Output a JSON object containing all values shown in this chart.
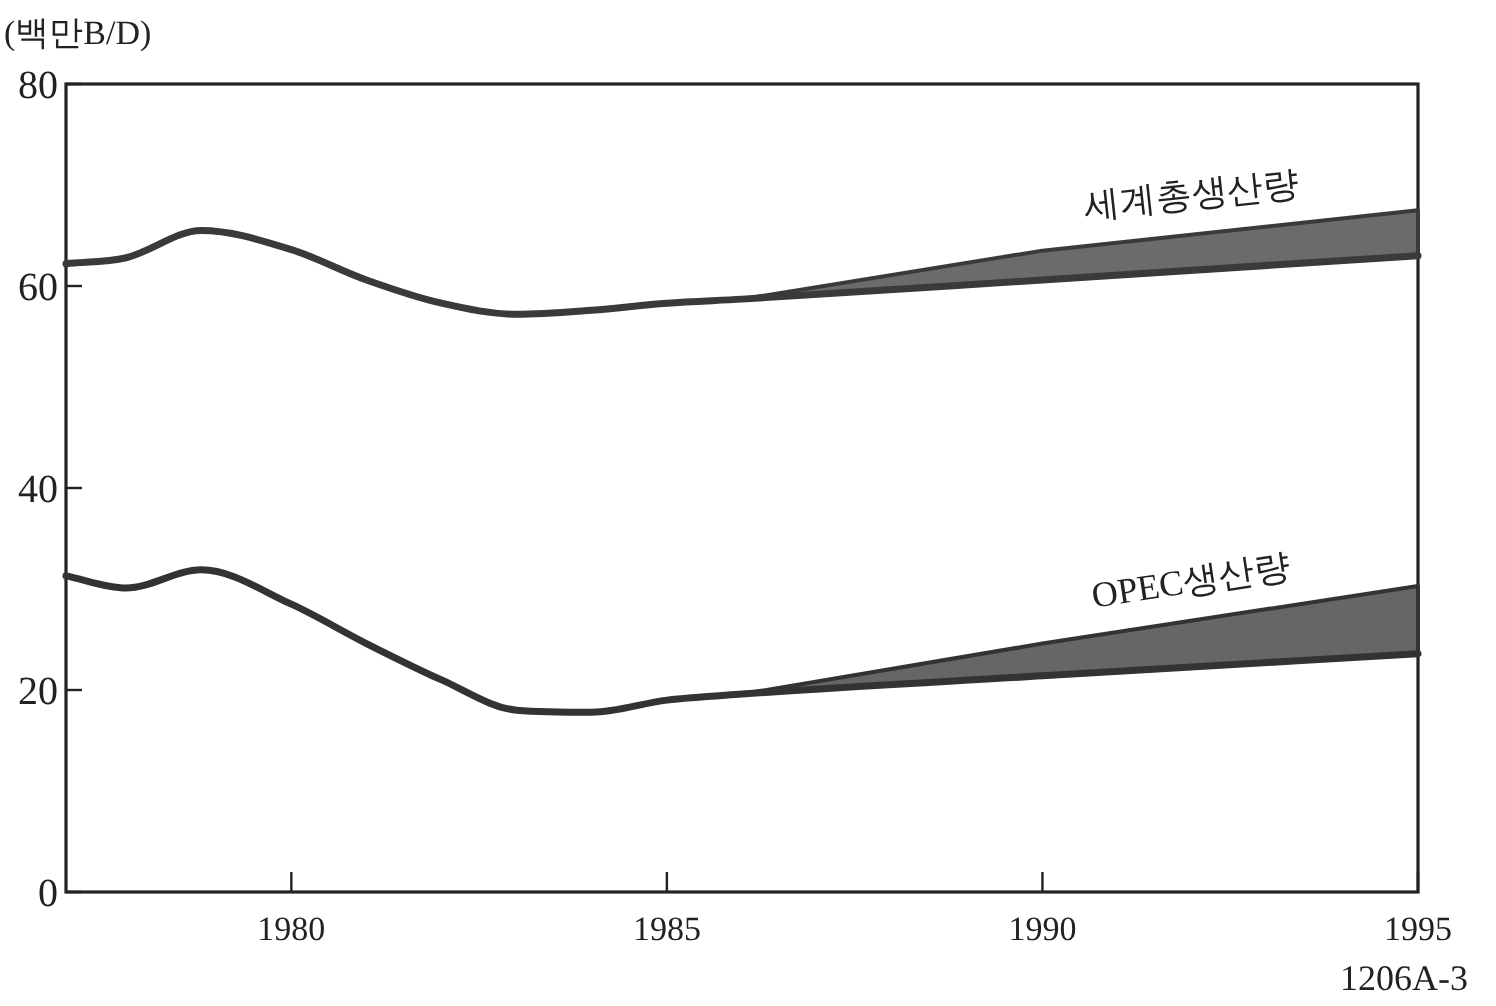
{
  "chart_data": {
    "type": "line",
    "ylabel": "(백만B/D)",
    "annotations": [
      "1206A-3"
    ],
    "x": [
      1977,
      1977.8,
      1978.8,
      1980,
      1981,
      1982,
      1983,
      1984,
      1985,
      1986,
      1990,
      1995
    ],
    "xlim": [
      1977,
      1995
    ],
    "xticks": [
      1980,
      1985,
      1990,
      1995
    ],
    "ylim": [
      0,
      80
    ],
    "yticks": [
      0,
      20,
      40,
      60,
      80
    ],
    "series": [
      {
        "name": "세계총생산량",
        "color": "#3a3a3a",
        "values": [
          62.2,
          62.8,
          65.5,
          63.6,
          60.6,
          58.3,
          57.2,
          57.6,
          58.3,
          58.7,
          60.6,
          63
        ],
        "lower": [
          null,
          null,
          null,
          null,
          null,
          null,
          null,
          null,
          null,
          58.7,
          60.6,
          63
        ],
        "upper": [
          null,
          null,
          null,
          null,
          null,
          null,
          null,
          null,
          null,
          58.7,
          63.5,
          67.5
        ]
      },
      {
        "name": "OPEC생산량",
        "color": "#333333",
        "values": [
          31.3,
          30.1,
          31.9,
          28.5,
          24.6,
          21,
          18,
          17.8,
          19,
          19.6,
          21.4,
          23.6
        ],
        "lower": [
          null,
          null,
          null,
          null,
          null,
          null,
          null,
          null,
          null,
          19.6,
          21.4,
          23.6
        ],
        "upper": [
          null,
          null,
          null,
          null,
          null,
          null,
          null,
          null,
          null,
          19.6,
          24.6,
          30.3
        ]
      }
    ]
  }
}
